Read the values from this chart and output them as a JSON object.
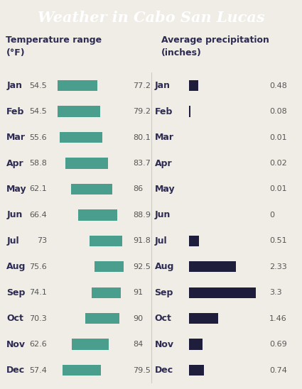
{
  "title": "Weather in Cabo San Lucas",
  "title_bg": "#2d2b52",
  "title_color": "#ffffff",
  "bg_color": "#f0ede6",
  "months": [
    "Jan",
    "Feb",
    "Mar",
    "Apr",
    "May",
    "Jun",
    "Jul",
    "Aug",
    "Sep",
    "Oct",
    "Nov",
    "Dec"
  ],
  "temp_low": [
    54.5,
    54.5,
    55.6,
    58.8,
    62.1,
    66.4,
    73.0,
    75.6,
    74.1,
    70.3,
    62.6,
    57.4
  ],
  "temp_high": [
    77.2,
    79.2,
    80.1,
    83.7,
    86.0,
    88.9,
    91.8,
    92.5,
    91.0,
    90.0,
    84.0,
    79.5
  ],
  "temp_high_labels": [
    "77.2",
    "79.2",
    "80.1",
    "83.7",
    "86",
    "88.9",
    "91.8",
    "92.5",
    "91",
    "90",
    "84",
    "79.5"
  ],
  "temp_low_labels": [
    "54.5",
    "54.5",
    "55.6",
    "58.8",
    "62.1",
    "66.4",
    "73",
    "75.6",
    "74.1",
    "70.3",
    "62.6",
    "57.4"
  ],
  "precip": [
    0.48,
    0.08,
    0.01,
    0.02,
    0.01,
    0.0,
    0.51,
    2.33,
    3.3,
    1.46,
    0.69,
    0.74
  ],
  "precip_labels": [
    "0.48",
    "0.08",
    "0.01",
    "0.02",
    "0.01",
    "0",
    "0.51",
    "2.33",
    "3.3",
    "1.46",
    "0.69",
    "0.74"
  ],
  "temp_bar_color": "#4a9e8e",
  "precip_bar_color": "#1e1e3c",
  "text_color": "#2d2b52",
  "label_color": "#555555",
  "temp_col_header": "Temperature range\n(°F)",
  "precip_col_header": "Average precipitation\n(inches)",
  "temp_xlim_low": 50,
  "temp_xlim_high": 97,
  "precip_xlim": 3.8
}
